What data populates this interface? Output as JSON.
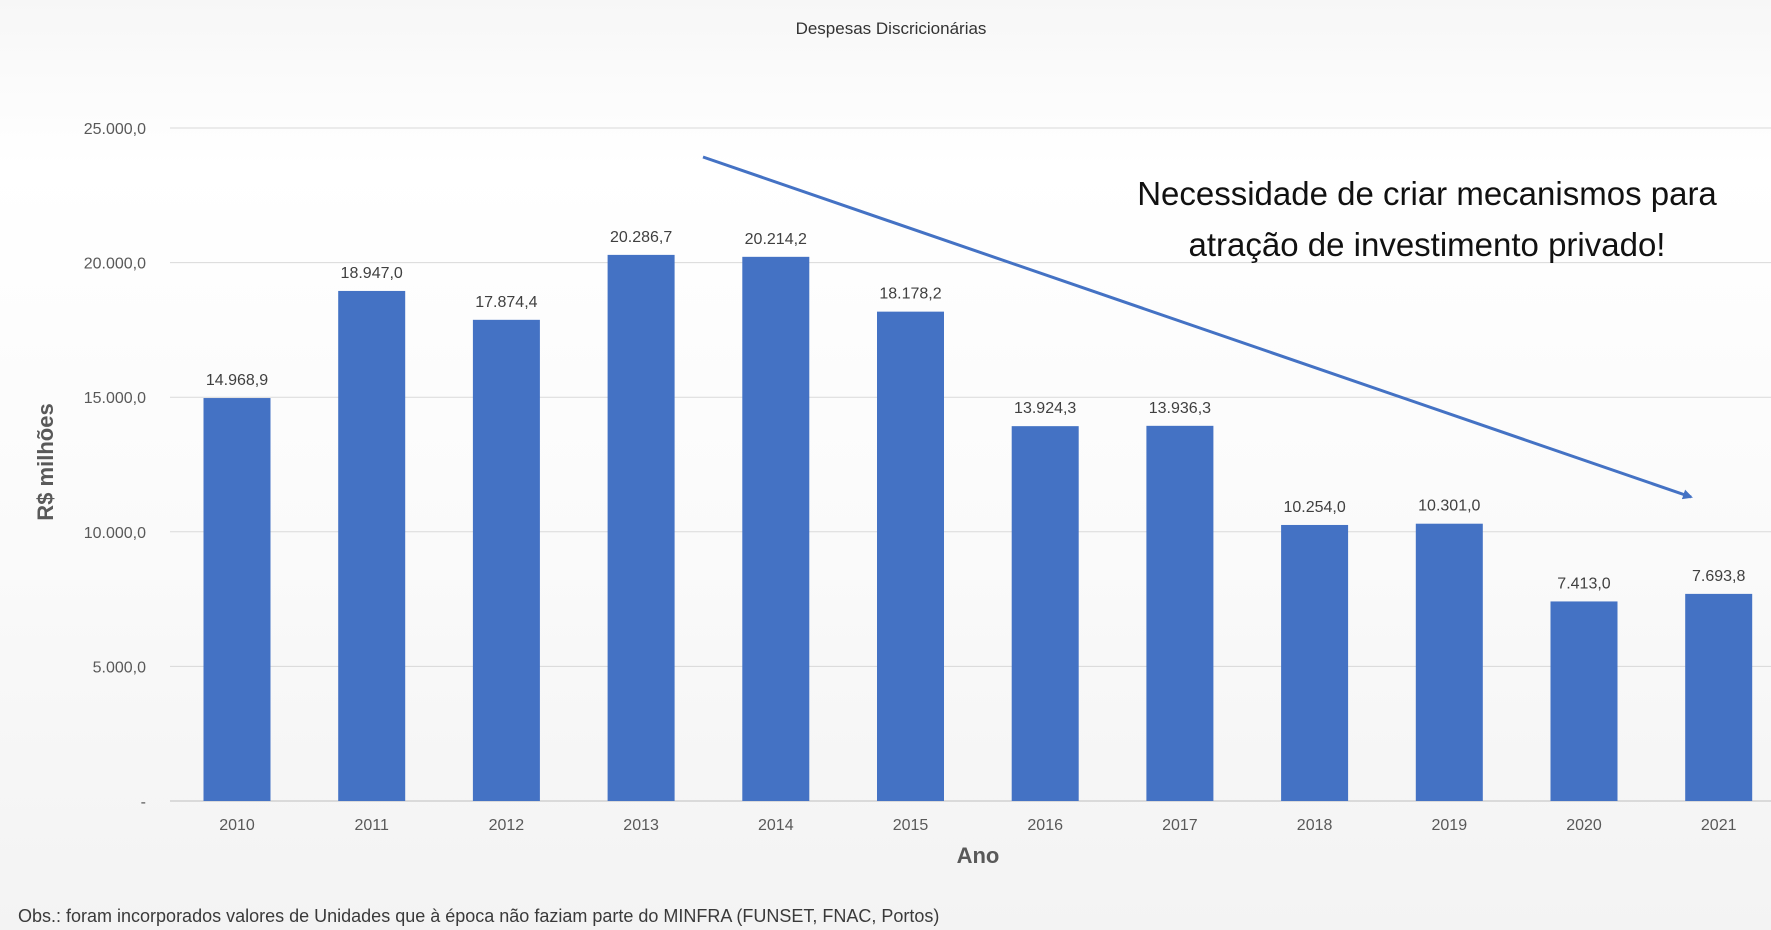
{
  "chart_data": {
    "type": "bar",
    "title": "Despesas Discricionárias",
    "xlabel": "Ano",
    "ylabel": "R$ milhões",
    "categories": [
      "2010",
      "2011",
      "2012",
      "2013",
      "2014",
      "2015",
      "2016",
      "2017",
      "2018",
      "2019",
      "2020",
      "2021"
    ],
    "values": [
      14968.9,
      18947.0,
      17874.4,
      20286.7,
      20214.2,
      18178.2,
      13924.3,
      13936.3,
      10254.0,
      10301.0,
      7413.0,
      7693.8
    ],
    "data_labels": [
      "14.968,9",
      "18.947,0",
      "17.874,4",
      "20.286,7",
      "20.214,2",
      "18.178,2",
      "13.924,3",
      "13.936,3",
      "10.254,0",
      "10.301,0",
      "7.413,0",
      "7.693,8"
    ],
    "ylim": [
      0,
      25000
    ],
    "yticks": [
      0,
      5000,
      10000,
      15000,
      20000,
      25000
    ],
    "ytick_labels": [
      "-",
      "5.000,0",
      "10.000,0",
      "15.000,0",
      "20.000,0",
      "25.000,0"
    ],
    "grid": true,
    "bar_color": "#4472C4",
    "annotation": {
      "lines": [
        "Necessidade de criar mecanismos para",
        "atração de investimento privado!"
      ],
      "arrow_color": "#4472C4"
    }
  },
  "note": "Obs.: foram incorporados valores de Unidades que à época não faziam parte do MINFRA (FUNSET, FNAC, Portos)"
}
